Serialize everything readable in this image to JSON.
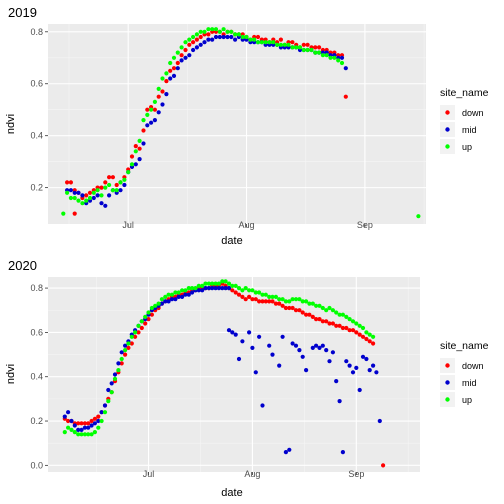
{
  "colors": {
    "panel_bg": "#ebebeb",
    "grid_major": "#ffffff",
    "grid_minor": "#f5f5f5",
    "series": {
      "down": "#ff0000",
      "mid": "#0000cd",
      "up": "#00ff00"
    }
  },
  "chart_data": [
    {
      "type": "scatter",
      "title": "2019",
      "xlabel": "date",
      "ylabel": "ndvi",
      "x_unit": "date",
      "xlim": [
        "2019-06-10",
        "2019-09-17"
      ],
      "ylim": [
        0.06,
        0.83
      ],
      "x_ticks": [
        {
          "value": "2019-07-01",
          "label": "Jul"
        },
        {
          "value": "2019-08-01",
          "label": "Aug"
        },
        {
          "value": "2019-09-01",
          "label": "Sep"
        }
      ],
      "y_ticks": [
        0.2,
        0.4,
        0.6,
        0.8
      ],
      "grid": true,
      "legend": {
        "title": "site_name",
        "position": "right",
        "entries": [
          "down",
          "mid",
          "up"
        ]
      },
      "series": [
        {
          "name": "down",
          "x_start": "2019-06-15",
          "step_days": 1,
          "values": [
            0.22,
            0.22,
            0.19,
            0.18,
            0.16,
            0.17,
            0.18,
            0.19,
            0.2,
            0.2,
            0.22,
            0.24,
            0.24,
            0.21,
            0.22,
            0.24,
            0.27,
            0.32,
            0.36,
            0.35,
            0.42,
            0.5,
            0.51,
            0.5,
            0.55,
            0.57,
            0.61,
            0.65,
            0.66,
            0.68,
            0.71,
            0.73,
            0.75,
            0.76,
            0.77,
            0.78,
            0.79,
            0.79,
            0.8,
            0.8,
            0.8,
            0.79,
            0.8,
            0.8,
            0.79,
            0.79,
            0.79,
            0.78,
            0.77,
            0.78,
            0.78,
            0.77,
            0.77,
            0.76,
            0.77,
            0.76,
            0.77,
            0.75,
            0.76,
            0.76,
            0.75,
            0.74,
            0.75,
            0.75,
            0.74,
            0.74,
            0.74,
            0.73,
            0.73,
            0.72,
            0.72,
            0.71,
            0.71,
            0.55
          ],
          "outliers": [
            {
              "x": "2019-06-17",
              "y": 0.1
            }
          ]
        },
        {
          "name": "mid",
          "x_start": "2019-06-15",
          "step_days": 1,
          "values": [
            0.19,
            0.19,
            0.18,
            0.18,
            0.17,
            0.14,
            0.15,
            0.16,
            0.17,
            0.14,
            0.13,
            0.17,
            0.19,
            0.18,
            0.19,
            0.21,
            0.26,
            0.28,
            0.29,
            0.31,
            0.37,
            0.44,
            0.45,
            0.46,
            0.49,
            0.52,
            0.56,
            0.62,
            0.63,
            0.66,
            0.69,
            0.7,
            0.71,
            0.73,
            0.74,
            0.75,
            0.76,
            0.77,
            0.77,
            0.78,
            0.78,
            0.78,
            0.78,
            0.78,
            0.77,
            0.78,
            0.77,
            0.77,
            0.76,
            0.76,
            0.76,
            0.76,
            0.75,
            0.75,
            0.75,
            0.75,
            0.74,
            0.74,
            0.74,
            0.74,
            0.74,
            0.73,
            0.73,
            0.73,
            0.73,
            0.72,
            0.72,
            0.72,
            0.72,
            0.71,
            0.71,
            0.7,
            0.7,
            0.66
          ]
        },
        {
          "name": "up",
          "x_start": "2019-06-14",
          "step_days": 1,
          "values": [
            0.1,
            0.18,
            0.16,
            0.16,
            0.15,
            0.14,
            0.15,
            0.16,
            0.18,
            0.19,
            0.17,
            0.2,
            0.21,
            0.19,
            0.19,
            0.22,
            0.23,
            0.26,
            0.29,
            0.34,
            0.38,
            0.46,
            0.48,
            0.5,
            0.53,
            0.58,
            0.62,
            0.64,
            0.68,
            0.7,
            0.72,
            0.74,
            0.76,
            0.77,
            0.78,
            0.79,
            0.8,
            0.8,
            0.81,
            0.81,
            0.81,
            0.8,
            0.81,
            0.8,
            0.8,
            0.79,
            0.79,
            0.78,
            0.78,
            0.77,
            0.77,
            0.76,
            0.76,
            0.76,
            0.76,
            0.76,
            0.75,
            0.75,
            0.75,
            0.75,
            0.74,
            0.74,
            0.74,
            0.73,
            0.73,
            0.73,
            0.72,
            0.72,
            0.71,
            0.71,
            0.7,
            0.7,
            0.69,
            0.68
          ],
          "outliers": [
            {
              "x": "2019-09-15",
              "y": 0.09
            }
          ]
        }
      ]
    },
    {
      "type": "scatter",
      "title": "2020",
      "xlabel": "date",
      "ylabel": "ndvi",
      "x_unit": "date",
      "xlim": [
        "2020-06-01",
        "2020-09-20"
      ],
      "ylim": [
        -0.03,
        0.85
      ],
      "x_ticks": [
        {
          "value": "2020-07-01",
          "label": "Jul"
        },
        {
          "value": "2020-08-01",
          "label": "Aug"
        },
        {
          "value": "2020-09-01",
          "label": "Sep"
        }
      ],
      "y_ticks": [
        0.0,
        0.2,
        0.4,
        0.6,
        0.8
      ],
      "grid": true,
      "legend": {
        "title": "site_name",
        "position": "right",
        "entries": [
          "down",
          "mid",
          "up"
        ]
      },
      "series": [
        {
          "name": "down",
          "x_start": "2020-06-06",
          "step_days": 1,
          "values": [
            0.21,
            0.2,
            0.2,
            0.19,
            0.19,
            0.19,
            0.19,
            0.19,
            0.2,
            0.21,
            0.22,
            0.24,
            0.27,
            0.3,
            0.33,
            0.38,
            0.42,
            0.46,
            0.5,
            0.53,
            0.55,
            0.58,
            0.6,
            0.62,
            0.64,
            0.66,
            0.68,
            0.7,
            0.71,
            0.73,
            0.74,
            0.75,
            0.76,
            0.76,
            0.77,
            0.77,
            0.78,
            0.78,
            0.79,
            0.79,
            0.8,
            0.8,
            0.8,
            0.8,
            0.81,
            0.81,
            0.81,
            0.82,
            0.81,
            0.8,
            0.79,
            0.78,
            0.77,
            0.76,
            0.75,
            0.76,
            0.75,
            0.75,
            0.74,
            0.74,
            0.74,
            0.74,
            0.74,
            0.73,
            0.73,
            0.72,
            0.71,
            0.71,
            0.71,
            0.7,
            0.7,
            0.69,
            0.68,
            0.68,
            0.67,
            0.66,
            0.66,
            0.65,
            0.65,
            0.64,
            0.64,
            0.63,
            0.63,
            0.62,
            0.62,
            0.61,
            0.61,
            0.6,
            0.59,
            0.58,
            0.57,
            0.56,
            0.55
          ],
          "outliers": [
            {
              "x": "2020-09-09",
              "y": 0.0
            }
          ]
        },
        {
          "name": "mid",
          "x_start": "2020-06-06",
          "step_days": 1,
          "values": [
            0.22,
            0.24,
            0.2,
            0.18,
            0.16,
            0.16,
            0.17,
            0.17,
            0.18,
            0.19,
            0.2,
            0.24,
            0.27,
            0.34,
            0.37,
            0.41,
            0.46,
            0.51,
            0.54,
            0.56,
            0.59,
            0.61,
            0.63,
            0.65,
            0.66,
            0.68,
            0.7,
            0.71,
            0.72,
            0.73,
            0.74,
            0.74,
            0.75,
            0.75,
            0.76,
            0.76,
            0.77,
            0.77,
            0.78,
            0.79,
            0.79,
            0.79,
            0.8,
            0.8,
            0.8,
            0.8,
            0.8,
            0.8,
            0.8,
            0.8
          ],
          "scattered": [
            {
              "x": "2020-07-25",
              "y": 0.61
            },
            {
              "x": "2020-07-26",
              "y": 0.6
            },
            {
              "x": "2020-07-27",
              "y": 0.59
            },
            {
              "x": "2020-07-28",
              "y": 0.48
            },
            {
              "x": "2020-07-29",
              "y": 0.56
            },
            {
              "x": "2020-07-31",
              "y": 0.6
            },
            {
              "x": "2020-08-01",
              "y": 0.53
            },
            {
              "x": "2020-08-02",
              "y": 0.42
            },
            {
              "x": "2020-08-03",
              "y": 0.58
            },
            {
              "x": "2020-08-04",
              "y": 0.27
            },
            {
              "x": "2020-08-06",
              "y": 0.54
            },
            {
              "x": "2020-08-07",
              "y": 0.5
            },
            {
              "x": "2020-08-09",
              "y": 0.45
            },
            {
              "x": "2020-08-10",
              "y": 0.58
            },
            {
              "x": "2020-08-11",
              "y": 0.06
            },
            {
              "x": "2020-08-12",
              "y": 0.07
            },
            {
              "x": "2020-08-13",
              "y": 0.55
            },
            {
              "x": "2020-08-14",
              "y": 0.54
            },
            {
              "x": "2020-08-15",
              "y": 0.52
            },
            {
              "x": "2020-08-16",
              "y": 0.49
            },
            {
              "x": "2020-08-17",
              "y": 0.43
            },
            {
              "x": "2020-08-19",
              "y": 0.53
            },
            {
              "x": "2020-08-20",
              "y": 0.54
            },
            {
              "x": "2020-08-21",
              "y": 0.53
            },
            {
              "x": "2020-08-22",
              "y": 0.54
            },
            {
              "x": "2020-08-23",
              "y": 0.52
            },
            {
              "x": "2020-08-24",
              "y": 0.47
            },
            {
              "x": "2020-08-25",
              "y": 0.51
            },
            {
              "x": "2020-08-26",
              "y": 0.38
            },
            {
              "x": "2020-08-27",
              "y": 0.29
            },
            {
              "x": "2020-08-28",
              "y": 0.06
            },
            {
              "x": "2020-08-29",
              "y": 0.47
            },
            {
              "x": "2020-08-30",
              "y": 0.45
            },
            {
              "x": "2020-08-31",
              "y": 0.42
            },
            {
              "x": "2020-09-01",
              "y": 0.44
            },
            {
              "x": "2020-09-02",
              "y": 0.34
            },
            {
              "x": "2020-09-03",
              "y": 0.49
            },
            {
              "x": "2020-09-04",
              "y": 0.48
            },
            {
              "x": "2020-09-05",
              "y": 0.43
            },
            {
              "x": "2020-09-06",
              "y": 0.45
            },
            {
              "x": "2020-09-07",
              "y": 0.42
            },
            {
              "x": "2020-09-08",
              "y": 0.2
            }
          ]
        },
        {
          "name": "up",
          "x_start": "2020-06-06",
          "step_days": 1,
          "values": [
            0.15,
            0.17,
            0.16,
            0.15,
            0.14,
            0.14,
            0.14,
            0.14,
            0.14,
            0.15,
            0.17,
            0.2,
            0.24,
            0.29,
            0.33,
            0.39,
            0.43,
            0.48,
            0.52,
            0.55,
            0.58,
            0.6,
            0.63,
            0.65,
            0.67,
            0.69,
            0.71,
            0.72,
            0.73,
            0.75,
            0.76,
            0.77,
            0.77,
            0.78,
            0.78,
            0.79,
            0.79,
            0.8,
            0.8,
            0.8,
            0.81,
            0.81,
            0.82,
            0.82,
            0.82,
            0.82,
            0.82,
            0.83,
            0.83,
            0.82,
            0.81,
            0.81,
            0.8,
            0.79,
            0.8,
            0.79,
            0.79,
            0.78,
            0.78,
            0.77,
            0.77,
            0.76,
            0.76,
            0.76,
            0.75,
            0.75,
            0.74,
            0.74,
            0.75,
            0.75,
            0.75,
            0.74,
            0.74,
            0.73,
            0.73,
            0.72,
            0.72,
            0.71,
            0.7,
            0.71,
            0.7,
            0.69,
            0.68,
            0.68,
            0.67,
            0.66,
            0.65,
            0.64,
            0.63,
            0.62,
            0.6,
            0.59,
            0.58
          ]
        }
      ]
    }
  ]
}
